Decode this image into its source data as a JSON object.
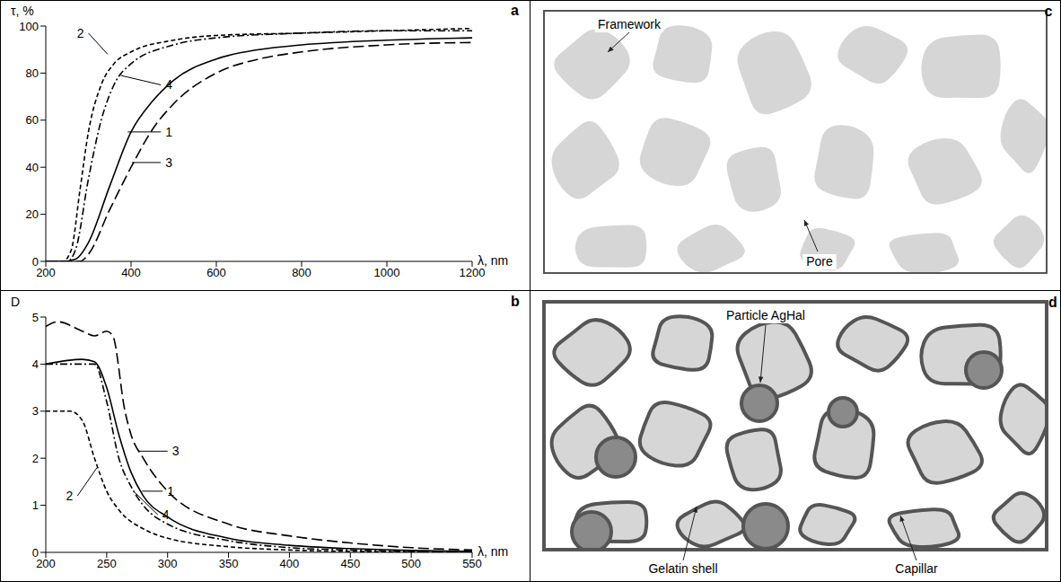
{
  "chart_data": [
    {
      "type": "line",
      "panel": "a",
      "y_label": "τ, %",
      "x_label": "λ, nm",
      "xlim": [
        200,
        1200
      ],
      "xticks": [
        200,
        400,
        600,
        800,
        1000,
        1200
      ],
      "ylim": [
        0,
        100
      ],
      "yticks": [
        0,
        20,
        40,
        60,
        80,
        100
      ],
      "series": [
        {
          "name": "1",
          "color": "#000000",
          "line_style": "solid",
          "x": [
            200,
            240,
            270,
            300,
            350,
            400,
            450,
            500,
            600,
            700,
            800,
            1000,
            1200
          ],
          "values": [
            0,
            0,
            1,
            8,
            32,
            55,
            68,
            77,
            86,
            90,
            92,
            94,
            95
          ]
        },
        {
          "name": "2",
          "color": "#000000",
          "line_style": "dashed",
          "x": [
            200,
            240,
            260,
            280,
            300,
            330,
            360,
            400,
            500,
            600,
            800,
            1000,
            1200
          ],
          "values": [
            0,
            0,
            5,
            30,
            55,
            75,
            84,
            89,
            94,
            96,
            97,
            98,
            99
          ]
        },
        {
          "name": "3",
          "color": "#000000",
          "line_style": "longdash",
          "x": [
            200,
            280,
            300,
            350,
            400,
            450,
            500,
            600,
            700,
            800,
            1000,
            1200
          ],
          "values": [
            0,
            0,
            3,
            22,
            40,
            56,
            67,
            80,
            86,
            89,
            92,
            93
          ]
        },
        {
          "name": "4",
          "color": "#000000",
          "line_style": "dashdot",
          "x": [
            200,
            250,
            270,
            300,
            330,
            360,
            400,
            500,
            600,
            800,
            1000,
            1200
          ],
          "values": [
            0,
            0,
            5,
            35,
            60,
            75,
            84,
            92,
            95,
            97,
            98,
            98
          ]
        }
      ]
    },
    {
      "type": "line",
      "panel": "b",
      "y_label": "D",
      "x_label": "λ, nm",
      "xlim": [
        200,
        550
      ],
      "xticks": [
        200,
        250,
        300,
        350,
        400,
        450,
        500,
        550
      ],
      "ylim": [
        0,
        5
      ],
      "yticks": [
        0,
        1,
        2,
        3,
        4,
        5
      ],
      "series": [
        {
          "name": "1",
          "color": "#000000",
          "line_style": "solid",
          "x": [
            200,
            230,
            240,
            250,
            260,
            270,
            280,
            300,
            350,
            400,
            450,
            500,
            550
          ],
          "values": [
            4.0,
            4.1,
            4.05,
            3.5,
            2.5,
            1.7,
            1.2,
            0.75,
            0.3,
            0.15,
            0.08,
            0.04,
            0.02
          ]
        },
        {
          "name": "2",
          "color": "#000000",
          "line_style": "dashed",
          "x": [
            200,
            220,
            230,
            240,
            250,
            260,
            280,
            300,
            350,
            400,
            450,
            500,
            550
          ],
          "values": [
            3.0,
            3.0,
            2.8,
            2.0,
            1.3,
            0.9,
            0.5,
            0.3,
            0.12,
            0.05,
            0.02,
            0.01,
            0.0
          ]
        },
        {
          "name": "3",
          "color": "#000000",
          "line_style": "longdash",
          "x": [
            200,
            210,
            230,
            240,
            250,
            255,
            265,
            270,
            280,
            300,
            350,
            400,
            450,
            500,
            550
          ],
          "values": [
            4.8,
            4.9,
            4.7,
            4.6,
            4.7,
            4.6,
            3.0,
            2.5,
            2.0,
            1.3,
            0.6,
            0.35,
            0.2,
            0.1,
            0.05
          ]
        },
        {
          "name": "4",
          "color": "#000000",
          "line_style": "dashdot",
          "x": [
            200,
            240,
            250,
            260,
            270,
            280,
            300,
            350,
            400,
            450,
            500,
            550
          ],
          "values": [
            4.0,
            4.0,
            3.2,
            2.0,
            1.4,
            1.0,
            0.6,
            0.25,
            0.1,
            0.05,
            0.02,
            0.01
          ]
        }
      ]
    }
  ],
  "diagrams": [
    {
      "panel": "c",
      "labels": [
        "Framework",
        "Pore"
      ]
    },
    {
      "panel": "d",
      "labels": [
        "Particle AgHal",
        "Gelatin shell",
        "Capillar"
      ]
    }
  ]
}
